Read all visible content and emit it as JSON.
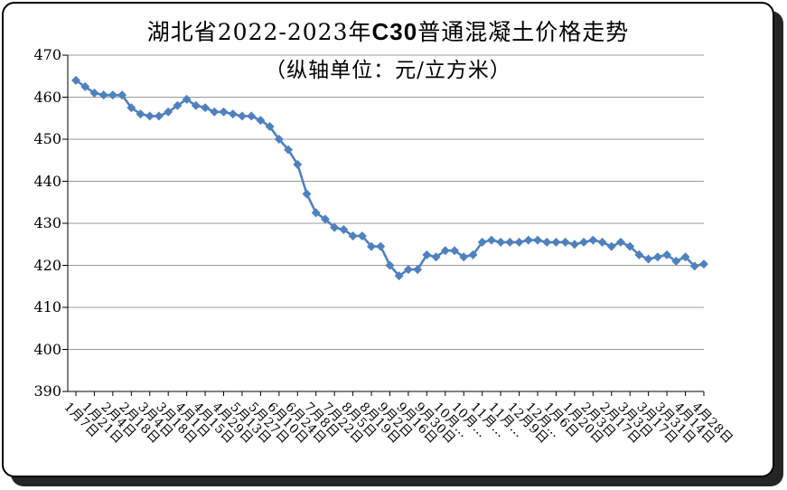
{
  "title": {
    "prefix": "湖北省2022-2023年",
    "c30": "C30",
    "suffix": "普通混凝土价格走势"
  },
  "subtitle": "（纵轴单位：元/立方米）",
  "chart_data": {
    "type": "line",
    "title": "湖北省2022-2023年C30普通混凝土价格走势",
    "subtitle": "（纵轴单位：元/立方米）",
    "y_unit": "元/立方米",
    "ylim": [
      390,
      470
    ],
    "y_tick_step": 10,
    "y_tick_labels": [
      "470",
      "460",
      "450",
      "440",
      "430",
      "420",
      "410",
      "400",
      "390"
    ],
    "x_tick_labels": [
      "1月7日",
      "1月21日",
      "2月4日",
      "2月18日",
      "3月4日",
      "3月18日",
      "4月1日",
      "4月15日",
      "4月29日",
      "5月13日",
      "5月27日",
      "6月10日",
      "6月24日",
      "7月8日",
      "7月22日",
      "8月5日",
      "8月19日",
      "9月2日",
      "9月16日",
      "9月30日",
      "10月…",
      "10月…",
      "11月…",
      "11月…",
      "12月9日",
      "12月…",
      "1月6日",
      "1月20日",
      "2月3日",
      "2月17日",
      "3月3日",
      "3月17日",
      "3月31日",
      "4月14日",
      "4月28日"
    ],
    "points_per_x_tick": 2,
    "n_points": 69,
    "values": [
      464,
      462.5,
      461,
      460.5,
      460.5,
      460.5,
      457.5,
      456,
      455.5,
      455.5,
      456.5,
      458,
      459.5,
      458,
      457.5,
      456.5,
      456.5,
      456,
      455.5,
      455.5,
      454.5,
      453,
      450,
      447.5,
      444,
      437,
      432.5,
      431,
      429,
      428.5,
      427,
      427,
      424.5,
      424.5,
      420,
      417.5,
      419,
      419,
      422.5,
      422,
      423.5,
      423.5,
      422,
      422.5,
      425.5,
      426,
      425.5,
      425.5,
      425.5,
      426,
      426,
      425.5,
      425.5,
      425.5,
      425,
      425.5,
      426,
      425.5,
      424.5,
      425.5,
      424.5,
      422.5,
      421.5,
      422,
      422.5,
      421,
      422,
      419.8,
      420.3
    ],
    "series_color": "#4F81BD",
    "marker": "diamond",
    "gridlines": "horizontal",
    "gridline_color": "#9a9a9a",
    "legend": "none"
  }
}
